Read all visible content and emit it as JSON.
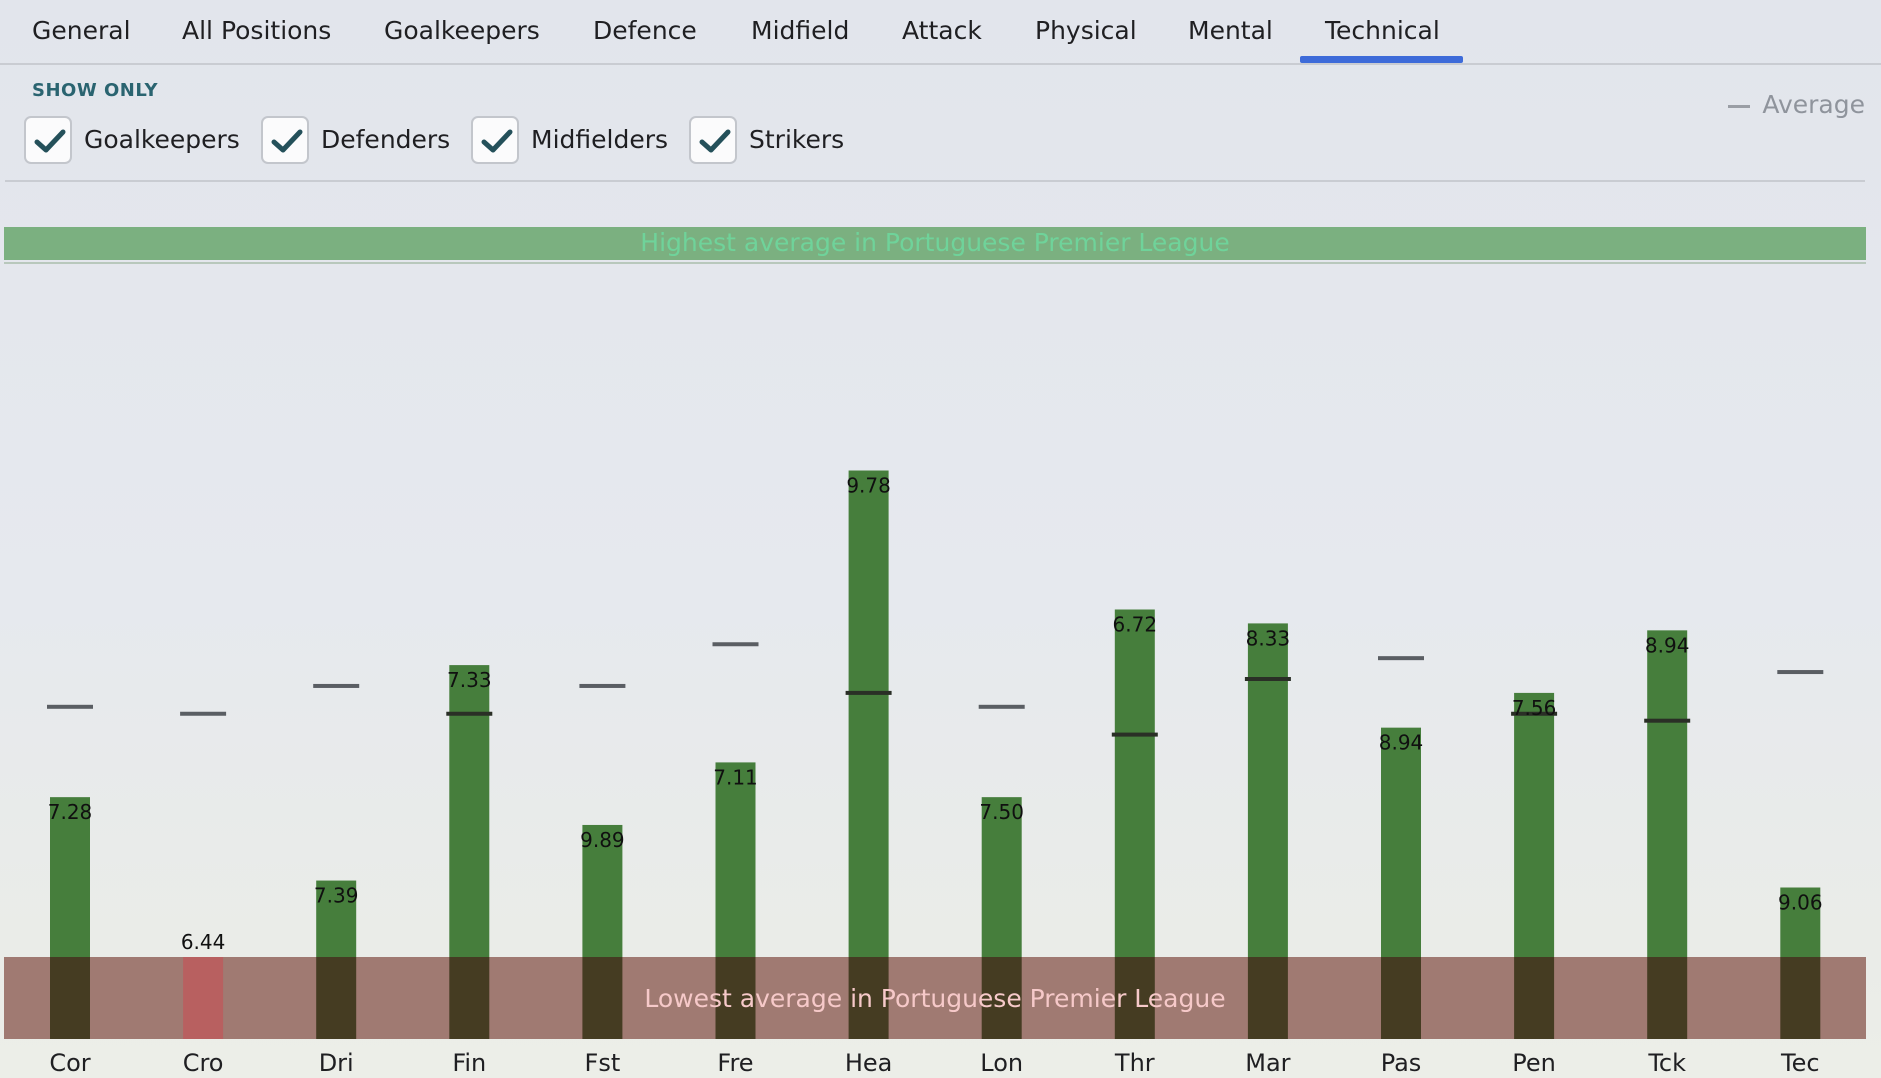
{
  "tabs": [
    {
      "label": "General",
      "active": false
    },
    {
      "label": "All Positions",
      "active": false
    },
    {
      "label": "Goalkeepers",
      "active": false
    },
    {
      "label": "Defence",
      "active": false
    },
    {
      "label": "Midfield",
      "active": false
    },
    {
      "label": "Attack",
      "active": false
    },
    {
      "label": "Physical",
      "active": false
    },
    {
      "label": "Mental",
      "active": false
    },
    {
      "label": "Technical",
      "active": true
    }
  ],
  "filters": {
    "heading": "SHOW ONLY",
    "items": [
      {
        "label": "Goalkeepers",
        "checked": true
      },
      {
        "label": "Defenders",
        "checked": true
      },
      {
        "label": "Midfielders",
        "checked": true
      },
      {
        "label": "Strikers",
        "checked": true
      }
    ]
  },
  "legend": {
    "average_label": "Average"
  },
  "colors": {
    "accent": "#3d6bd9",
    "bar_green": "#467e3c",
    "bar_red": "#b86060",
    "band_high": "#7bb080",
    "band_low": "#a07a72",
    "check": "#24505a"
  },
  "chart_data": {
    "type": "bar",
    "high_band_label": "Highest average in Portuguese Premier League",
    "low_band_label": "Lowest average in Portuguese Premier League",
    "categories": [
      "Cor",
      "Cro",
      "Dri",
      "Fin",
      "Fst",
      "Fre",
      "Hea",
      "Lon",
      "Thr",
      "Mar",
      "Pas",
      "Pen",
      "Tck",
      "Tec"
    ],
    "value_labels": [
      "7.28",
      "6.44",
      "7.39",
      "7.33",
      "9.89",
      "7.11",
      "9.78",
      "7.50",
      "6.72",
      "8.33",
      "8.94",
      "7.56",
      "8.94",
      "9.06"
    ],
    "bar_level": [
      0.23,
      0.0,
      0.11,
      0.42,
      0.19,
      0.28,
      0.7,
      0.23,
      0.5,
      0.48,
      0.33,
      0.38,
      0.47,
      0.1
    ],
    "average_level": [
      0.36,
      0.35,
      0.39,
      0.35,
      0.39,
      0.45,
      0.38,
      0.36,
      0.32,
      0.4,
      0.43,
      0.35,
      0.34,
      0.41
    ],
    "highlight": [
      false,
      true,
      false,
      false,
      false,
      false,
      false,
      false,
      false,
      false,
      false,
      false,
      false,
      false
    ],
    "ylim": [
      0,
      1
    ]
  }
}
